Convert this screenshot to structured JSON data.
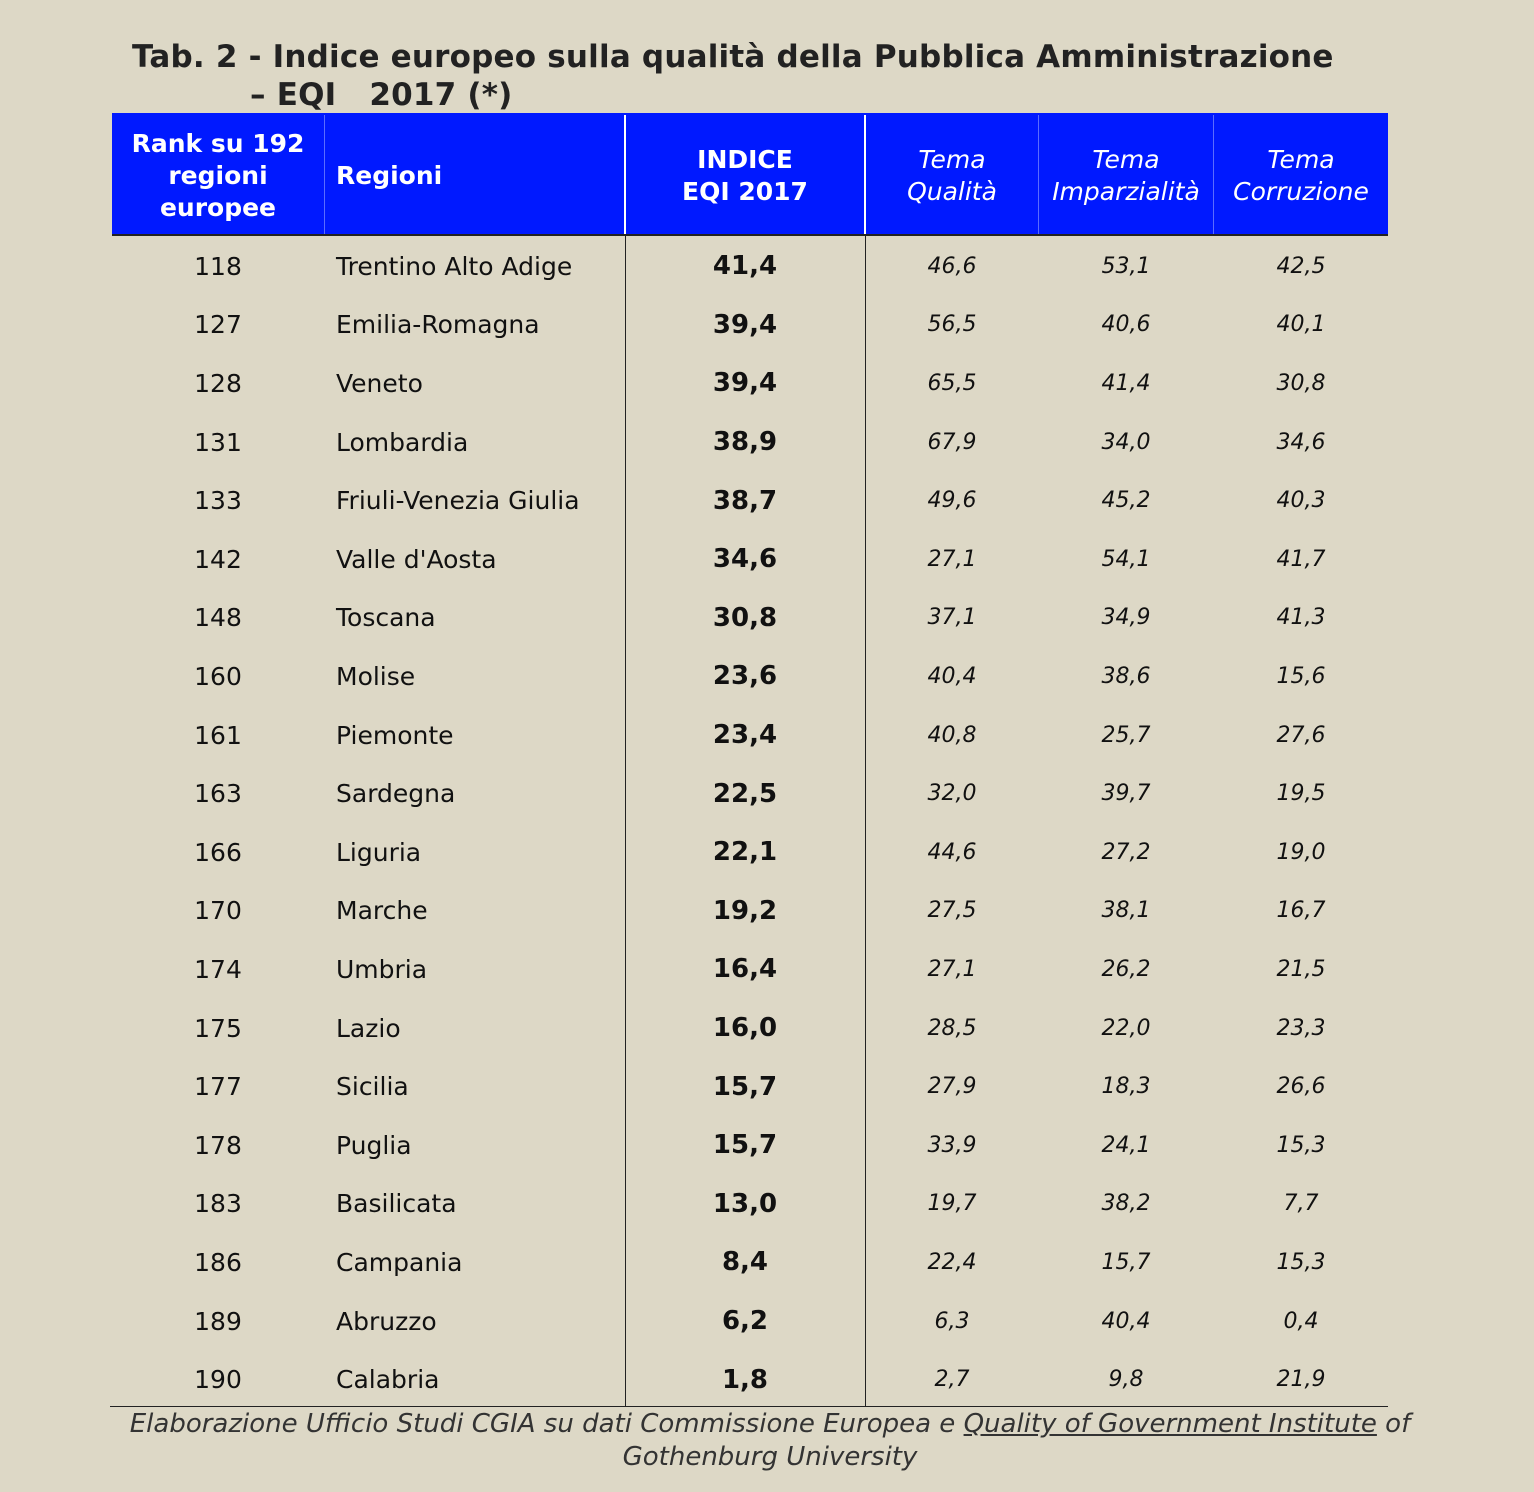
{
  "title": {
    "line1": "Tab. 2 - Indice europeo sulla qualità della Pubblica Amministrazione",
    "line2": "– EQI   2017 (*)"
  },
  "columns": {
    "rank": [
      "Rank su 192",
      "regioni",
      "europee"
    ],
    "region": "Regioni",
    "index": [
      "INDICE",
      "EQI 2017"
    ],
    "quality": [
      "Tema",
      "Qualità"
    ],
    "impartiality": [
      "Tema",
      "Imparzialità"
    ],
    "corruption": [
      "Tema",
      "Corruzione"
    ]
  },
  "colors": {
    "header_bg": "#0019ff",
    "page_bg": "#ddd8c6"
  },
  "chart_data": {
    "type": "table",
    "title": "Tab. 2 - Indice europeo sulla qualità della Pubblica Amministrazione – EQI 2017 (*)",
    "columns": [
      "Rank su 192 regioni europee",
      "Regioni",
      "INDICE EQI 2017",
      "Tema Qualità",
      "Tema Imparzialità",
      "Tema Corruzione"
    ],
    "rows": [
      [
        "118",
        "Trentino Alto Adige",
        "41,4",
        "46,6",
        "53,1",
        "42,5"
      ],
      [
        "127",
        "Emilia-Romagna",
        "39,4",
        "56,5",
        "40,6",
        "40,1"
      ],
      [
        "128",
        "Veneto",
        "39,4",
        "65,5",
        "41,4",
        "30,8"
      ],
      [
        "131",
        "Lombardia",
        "38,9",
        "67,9",
        "34,0",
        "34,6"
      ],
      [
        "133",
        "Friuli-Venezia Giulia",
        "38,7",
        "49,6",
        "45,2",
        "40,3"
      ],
      [
        "142",
        "Valle d'Aosta",
        "34,6",
        "27,1",
        "54,1",
        "41,7"
      ],
      [
        "148",
        "Toscana",
        "30,8",
        "37,1",
        "34,9",
        "41,3"
      ],
      [
        "160",
        "Molise",
        "23,6",
        "40,4",
        "38,6",
        "15,6"
      ],
      [
        "161",
        "Piemonte",
        "23,4",
        "40,8",
        "25,7",
        "27,6"
      ],
      [
        "163",
        "Sardegna",
        "22,5",
        "32,0",
        "39,7",
        "19,5"
      ],
      [
        "166",
        "Liguria",
        "22,1",
        "44,6",
        "27,2",
        "19,0"
      ],
      [
        "170",
        "Marche",
        "19,2",
        "27,5",
        "38,1",
        "16,7"
      ],
      [
        "174",
        "Umbria",
        "16,4",
        "27,1",
        "26,2",
        "21,5"
      ],
      [
        "175",
        "Lazio",
        "16,0",
        "28,5",
        "22,0",
        "23,3"
      ],
      [
        "177",
        "Sicilia",
        "15,7",
        "27,9",
        "18,3",
        "26,6"
      ],
      [
        "178",
        "Puglia",
        "15,7",
        "33,9",
        "24,1",
        "15,3"
      ],
      [
        "183",
        "Basilicata",
        "13,0",
        "19,7",
        "38,2",
        "7,7"
      ],
      [
        "186",
        "Campania",
        "8,4",
        "22,4",
        "15,7",
        "15,3"
      ],
      [
        "189",
        "Abruzzo",
        "6,2",
        "6,3",
        "40,4",
        "0,4"
      ],
      [
        "190",
        "Calabria",
        "1,8",
        "2,7",
        "9,8",
        "21,9"
      ]
    ]
  },
  "source": {
    "part1": "Elaborazione Ufficio Studi CGIA su dati Commissione Europea e ",
    "link": "Quality of Government Institute",
    "part2": " of",
    "line2": "Gothenburg University"
  }
}
